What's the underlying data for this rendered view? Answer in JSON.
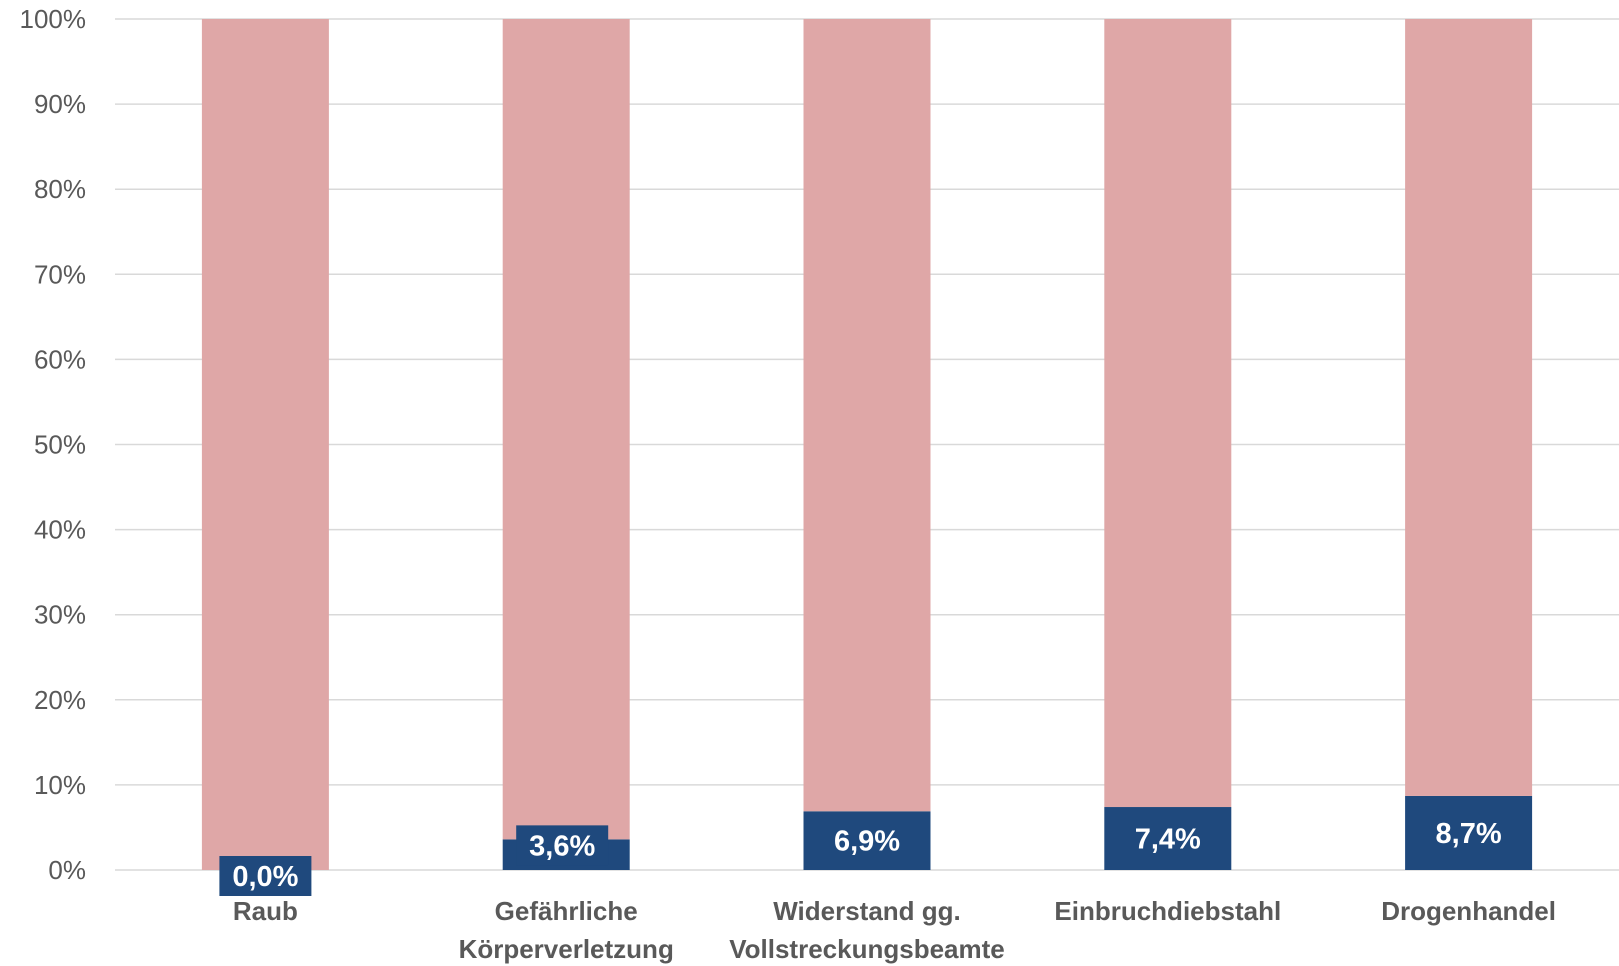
{
  "chart_data": {
    "type": "bar",
    "stacked": true,
    "categories": [
      [
        "Raub"
      ],
      [
        "Gefährliche",
        "Körperverletzung"
      ],
      [
        "Widerstand gg.",
        "Vollstreckungsbeamte"
      ],
      [
        "Einbruchdiebstahl"
      ],
      [
        "Drogenhandel"
      ]
    ],
    "series": [
      {
        "values": [
          0.0,
          3.6,
          6.9,
          7.4,
          8.7
        ],
        "color": "#1F497D",
        "data_labels": [
          "0,0%",
          "3,6%",
          "6,9%",
          "7,4%",
          "8,7%"
        ]
      },
      {
        "values": [
          100.0,
          96.4,
          93.1,
          92.6,
          91.3
        ],
        "color": "#DFA7A7"
      }
    ],
    "ylim": [
      0,
      100
    ],
    "yticks": [
      "0%",
      "10%",
      "20%",
      "30%",
      "40%",
      "50%",
      "60%",
      "70%",
      "80%",
      "90%",
      "100%"
    ],
    "grid": true,
    "legend": "none"
  }
}
